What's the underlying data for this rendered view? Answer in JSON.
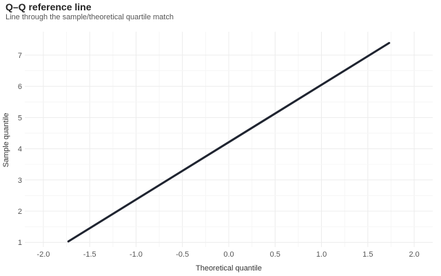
{
  "chart_data": {
    "type": "line",
    "title": "Q–Q reference line",
    "subtitle": "Line through the sample/theoretical quartile match",
    "xlabel": "Theoretical quantile",
    "ylabel": "Sample quantile",
    "xlim": [
      -2.2,
      2.2
    ],
    "ylim": [
      0.85,
      7.75
    ],
    "xticks": [
      -2.0,
      -1.5,
      -1.0,
      -0.5,
      0.0,
      0.5,
      1.0,
      1.5,
      2.0
    ],
    "xtick_labels": [
      "-2.0",
      "-1.5",
      "-1.0",
      "-0.5",
      "0.0",
      "0.5",
      "1.0",
      "1.5",
      "2.0"
    ],
    "yticks": [
      1,
      2,
      3,
      4,
      5,
      6,
      7
    ],
    "ytick_labels": [
      "1",
      "2",
      "3",
      "4",
      "5",
      "6",
      "7"
    ],
    "grid": true,
    "series": [
      {
        "x": [
          -1.73,
          1.73
        ],
        "y": [
          1.03,
          7.39
        ],
        "color": "#1f2430"
      }
    ]
  }
}
